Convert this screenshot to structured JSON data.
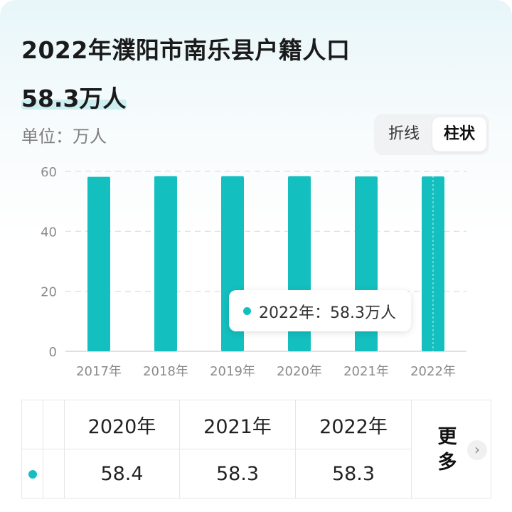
{
  "header": {
    "title": "2022年濮阳市南乐县户籍人口",
    "value": "58.3万人",
    "unit": "单位：万人"
  },
  "toggle": {
    "line_label": "折线",
    "bar_label": "柱状",
    "selected": "bar"
  },
  "tooltip": {
    "text": "2022年：58.3万人"
  },
  "colors": {
    "bar": "#14bfbf",
    "grid": "#e3e3e3",
    "axis_text": "#8a8a8a"
  },
  "chart_data": {
    "type": "bar",
    "categories": [
      "2017年",
      "2018年",
      "2019年",
      "2020年",
      "2021年",
      "2022年"
    ],
    "values": [
      58.2,
      58.4,
      58.4,
      58.4,
      58.3,
      58.3
    ],
    "ylim": [
      0,
      60
    ],
    "yticks": [
      0,
      20,
      40,
      60
    ],
    "grid": true,
    "xlabel": "",
    "ylabel": "",
    "title": ""
  },
  "table": {
    "headers": [
      "2020年",
      "2021年",
      "2022年"
    ],
    "values": [
      "58.4",
      "58.3",
      "58.3"
    ],
    "more_label": "更多",
    "more_icon": "chevron-right-icon"
  }
}
